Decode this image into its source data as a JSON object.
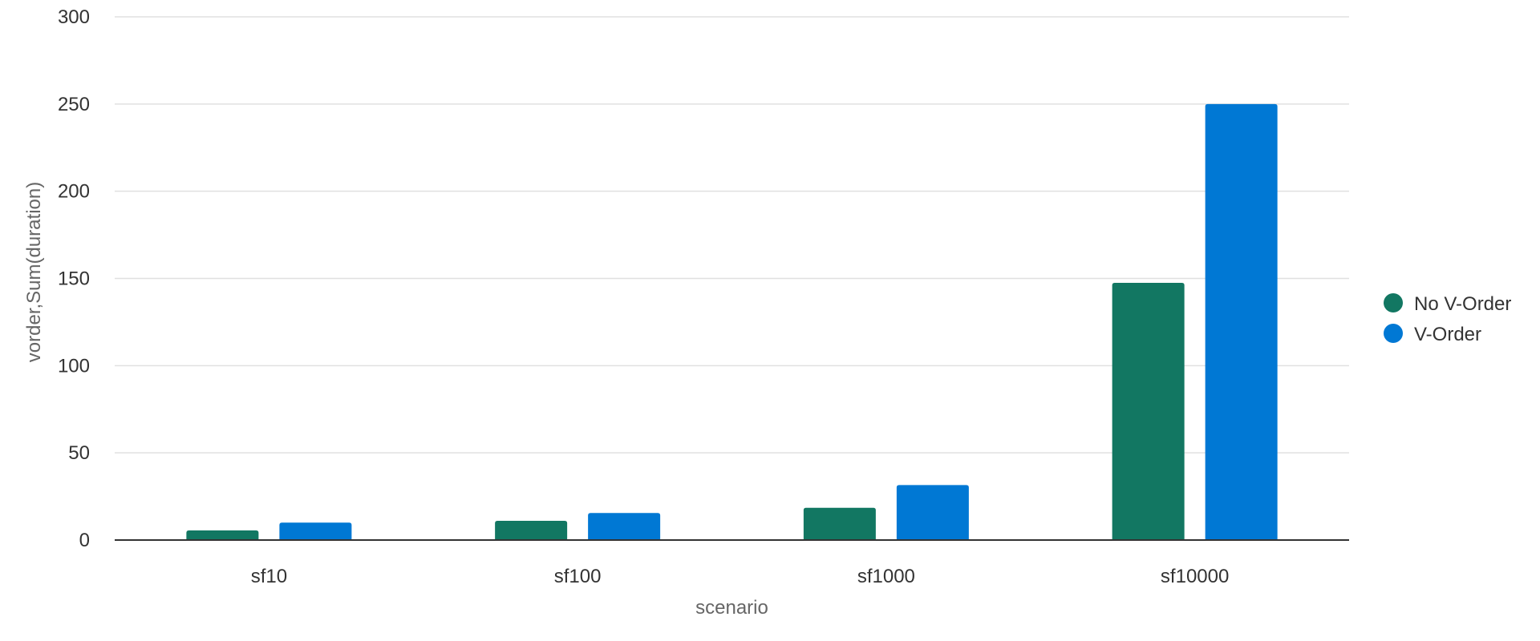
{
  "chart_data": {
    "type": "bar",
    "categories": [
      "sf10",
      "sf100",
      "sf1000",
      "sf10000"
    ],
    "series": [
      {
        "name": "No V-Order",
        "values": [
          5.5,
          11,
          18.5,
          147.5
        ],
        "color": "#127762"
      },
      {
        "name": "V-Order",
        "values": [
          10,
          15.5,
          31.5,
          250
        ],
        "color": "#0078d4"
      }
    ],
    "xlabel": "scenario",
    "ylabel": "vorder,Sum(duration)",
    "ylim": [
      0,
      300
    ],
    "yticks": [
      0,
      50,
      100,
      150,
      200,
      250,
      300
    ],
    "grid": true,
    "legend_position": "right"
  }
}
